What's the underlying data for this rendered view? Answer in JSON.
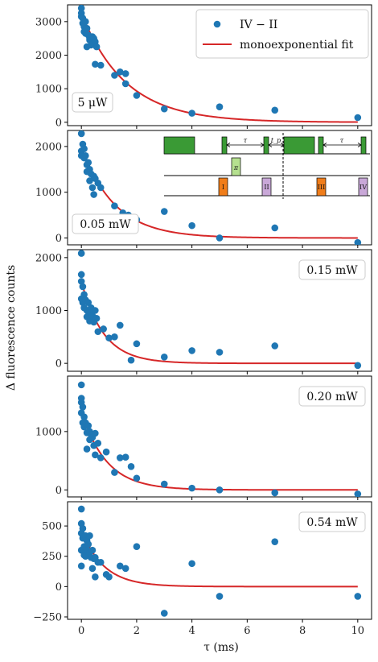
{
  "chart_data": {
    "type": "scatter",
    "ylabel": "Δ fluorescence counts",
    "xlabel": "τ (ms)",
    "x_ticks": [
      "0",
      "2",
      "4",
      "6",
      "8",
      "10"
    ],
    "xlim": [
      -0.5,
      10.5
    ],
    "legend": {
      "placement": "top-right of first panel",
      "entries": [
        "IV − II",
        "monoexponential fit"
      ]
    },
    "colors": {
      "points": "#1f77b4",
      "fit": "#d62728"
    },
    "inset": {
      "labels": [
        "τ",
        "t_p",
        "τ",
        "π",
        "I",
        "II",
        "III",
        "IV"
      ],
      "colors": {
        "laser": "#3a9a35",
        "pi": "#b5e08f",
        "orange": "#f07d1a",
        "purple": "#c9a8d8"
      }
    },
    "panels": [
      {
        "label": "5 μW",
        "ylim": [
          -100,
          3500
        ],
        "yticks": [
          "0",
          "1000",
          "2000",
          "3000"
        ],
        "ytick_values": [
          0,
          1000,
          2000,
          3000
        ],
        "fit": {
          "A": 3250,
          "tau": 1.6,
          "c": 0
        },
        "series": [
          {
            "name": "IV − II",
            "x": [
              0.0,
              0.0,
              0.0,
              0.05,
              0.05,
              0.1,
              0.1,
              0.15,
              0.15,
              0.2,
              0.2,
              0.25,
              0.3,
              0.3,
              0.35,
              0.4,
              0.45,
              0.5,
              0.5,
              0.55,
              0.7,
              1.2,
              1.4,
              1.6,
              1.6,
              2.0,
              3.0,
              4.0,
              5.0,
              7.0,
              10.0
            ],
            "y": [
              3400,
              3250,
              3150,
              3100,
              2950,
              2850,
              2700,
              3000,
              2650,
              2800,
              2250,
              2600,
              2450,
              2500,
              2300,
              2550,
              2500,
              2400,
              1730,
              2250,
              1700,
              1400,
              1500,
              1450,
              1150,
              800,
              400,
              270,
              460,
              360,
              140
            ]
          }
        ]
      },
      {
        "label": "0.05 mW",
        "ylim": [
          -150,
          2350
        ],
        "yticks": [
          "0",
          "1000",
          "2000"
        ],
        "ytick_values": [
          0,
          1000,
          2000
        ],
        "fit": {
          "A": 2000,
          "tau": 1.2,
          "c": 0
        },
        "series": [
          {
            "name": "IV − II",
            "x": [
              0.0,
              0.0,
              0.0,
              0.05,
              0.1,
              0.1,
              0.15,
              0.2,
              0.2,
              0.25,
              0.3,
              0.3,
              0.35,
              0.4,
              0.45,
              0.45,
              0.5,
              0.6,
              0.7,
              1.2,
              1.5,
              1.7,
              2.0,
              3.0,
              4.0,
              5.0,
              7.0,
              10.0
            ],
            "y": [
              2280,
              1900,
              1800,
              2050,
              1950,
              1750,
              1800,
              1600,
              1450,
              1650,
              1500,
              1250,
              1400,
              1100,
              1350,
              950,
              1300,
              1200,
              1100,
              700,
              550,
              500,
              400,
              580,
              270,
              0,
              220,
              -100
            ]
          }
        ]
      },
      {
        "label": "0.15 mW",
        "ylim": [
          -150,
          2150
        ],
        "yticks": [
          "0",
          "1000",
          "2000"
        ],
        "ytick_values": [
          0,
          1000,
          2000
        ],
        "fit": {
          "A": 1550,
          "tau": 0.8,
          "c": 0
        },
        "series": [
          {
            "name": "IV − II",
            "x": [
              0.0,
              0.0,
              0.0,
              0.0,
              0.05,
              0.05,
              0.1,
              0.1,
              0.15,
              0.2,
              0.2,
              0.25,
              0.3,
              0.3,
              0.35,
              0.4,
              0.45,
              0.5,
              0.55,
              0.6,
              0.8,
              1.0,
              1.2,
              1.4,
              1.8,
              2.0,
              3.0,
              4.0,
              5.0,
              7.0,
              10.0
            ],
            "y": [
              2080,
              1680,
              1550,
              1220,
              1450,
              1150,
              1300,
              1050,
              1200,
              1000,
              880,
              1150,
              980,
              800,
              1050,
              900,
              780,
              1000,
              850,
              600,
              650,
              480,
              500,
              720,
              60,
              370,
              120,
              240,
              210,
              330,
              -40
            ]
          }
        ]
      },
      {
        "label": "0.20 mW",
        "ylim": [
          -120,
          1950
        ],
        "yticks": [
          "0",
          "1000"
        ],
        "ytick_values": [
          0,
          1000
        ],
        "fit": {
          "A": 1350,
          "tau": 0.9,
          "c": 0
        },
        "series": [
          {
            "name": "IV − II",
            "x": [
              0.0,
              0.0,
              0.0,
              0.0,
              0.05,
              0.05,
              0.1,
              0.1,
              0.15,
              0.2,
              0.2,
              0.25,
              0.3,
              0.3,
              0.35,
              0.4,
              0.45,
              0.5,
              0.5,
              0.6,
              0.7,
              0.9,
              1.2,
              1.4,
              1.6,
              1.8,
              2.0,
              3.0,
              4.0,
              5.0,
              7.0,
              10.0
            ],
            "y": [
              1800,
              1570,
              1500,
              1320,
              1420,
              1150,
              1250,
              1080,
              1150,
              980,
              700,
              1100,
              1000,
              860,
              950,
              900,
              760,
              970,
              600,
              800,
              550,
              650,
              300,
              550,
              560,
              400,
              200,
              100,
              30,
              0,
              -50,
              -70
            ]
          }
        ]
      },
      {
        "label": "0.54 mW",
        "ylim": [
          -270,
          700
        ],
        "yticks": [
          "−250",
          "0",
          "250",
          "500"
        ],
        "ytick_values": [
          -250,
          0,
          250,
          500
        ],
        "fit": {
          "A": 470,
          "tau": 0.8,
          "c": 0
        },
        "series": [
          {
            "name": "IV − II",
            "x": [
              0.0,
              0.0,
              0.0,
              0.0,
              0.0,
              0.05,
              0.05,
              0.1,
              0.1,
              0.15,
              0.15,
              0.2,
              0.2,
              0.25,
              0.3,
              0.3,
              0.35,
              0.4,
              0.4,
              0.45,
              0.5,
              0.5,
              0.6,
              0.7,
              0.9,
              1.0,
              1.4,
              1.6,
              2.0,
              3.0,
              4.0,
              5.0,
              7.0,
              10.0
            ],
            "y": [
              640,
              520,
              440,
              300,
              170,
              480,
              400,
              330,
              260,
              420,
              250,
              380,
              300,
              350,
              420,
              280,
              240,
              300,
              150,
              230,
              240,
              80,
              200,
              200,
              100,
              80,
              170,
              150,
              330,
              -220,
              190,
              -80,
              370,
              -80
            ]
          }
        ]
      }
    ]
  }
}
